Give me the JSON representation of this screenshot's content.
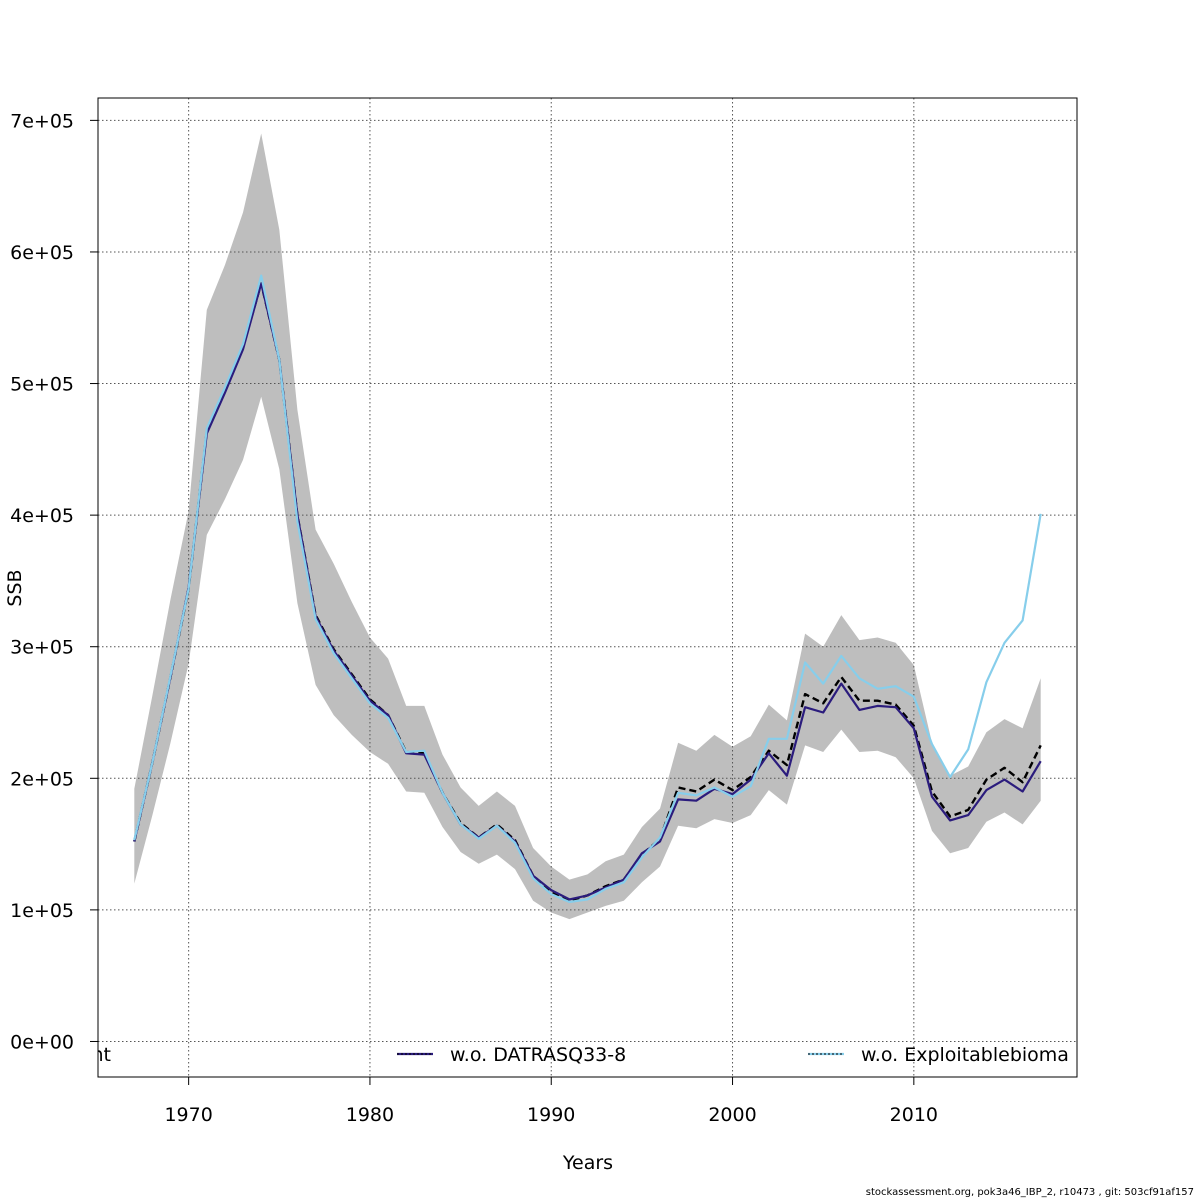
{
  "footer_text": "stockassessment.org, pok3a46_IBP_2, r10473 , git: 503cf91af157",
  "chart_data": {
    "type": "line",
    "title": "",
    "xlabel": "Years",
    "ylabel": "SSB",
    "xlim": [
      1965,
      2019
    ],
    "ylim": [
      -27000,
      717000
    ],
    "x_ticks": [
      1970,
      1980,
      1990,
      2000,
      2010
    ],
    "y_ticks": [
      0,
      100000,
      200000,
      300000,
      400000,
      500000,
      600000,
      700000
    ],
    "y_tick_labels": [
      "0e+00",
      "1e+05",
      "2e+05",
      "3e+05",
      "4e+05",
      "5e+05",
      "6e+05",
      "7e+05"
    ],
    "grid": true,
    "legend": {
      "placement": "bottom",
      "entries": [
        {
          "label": "nt",
          "color": "#000000",
          "style": "dashed"
        },
        {
          "label": "w.o. DATRASQ33-8",
          "color": "#2b1c7d",
          "style": "solid"
        },
        {
          "label": "w.o. Exploitablebioma",
          "color": "#87ceeb",
          "style": "dotted"
        }
      ]
    },
    "colors": {
      "band": "#bebebe",
      "base": "#000000",
      "datras": "#2b1c7d",
      "exploitable": "#87ceeb"
    },
    "x": [
      1967,
      1968,
      1969,
      1970,
      1971,
      1972,
      1973,
      1974,
      1975,
      1976,
      1977,
      1978,
      1979,
      1980,
      1981,
      1982,
      1983,
      1984,
      1985,
      1986,
      1987,
      1988,
      1989,
      1990,
      1991,
      1992,
      1993,
      1994,
      1995,
      1996,
      1997,
      1998,
      1999,
      2000,
      2001,
      2002,
      2003,
      2004,
      2005,
      2006,
      2007,
      2008,
      2009,
      2010,
      2011,
      2012,
      2013,
      2014,
      2015,
      2016,
      2017
    ],
    "band_lower": [
      120000,
      172000,
      227000,
      287000,
      385000,
      412000,
      442000,
      490000,
      435000,
      333000,
      271000,
      248000,
      233000,
      220000,
      211000,
      190000,
      189000,
      163000,
      144000,
      135000,
      142000,
      131000,
      107000,
      98000,
      93000,
      98000,
      103000,
      107000,
      121000,
      133000,
      164000,
      162000,
      169000,
      166000,
      172000,
      191000,
      180000,
      225000,
      220000,
      237000,
      220000,
      221000,
      216000,
      200000,
      160000,
      143000,
      147000,
      167000,
      174000,
      165000,
      183000
    ],
    "band_upper": [
      192000,
      263000,
      336000,
      403000,
      556000,
      590000,
      630000,
      690000,
      617000,
      480000,
      389000,
      363000,
      334000,
      307000,
      291000,
      255000,
      255000,
      218000,
      193000,
      179000,
      190000,
      179000,
      147000,
      133000,
      123000,
      127000,
      137000,
      142000,
      163000,
      177000,
      227000,
      221000,
      233000,
      224000,
      232000,
      256000,
      244000,
      310000,
      300000,
      324000,
      305000,
      307000,
      303000,
      286000,
      227000,
      202000,
      209000,
      235000,
      245000,
      238000,
      276000
    ],
    "series": [
      {
        "name": "nt",
        "color": "#000000",
        "style": "dashed",
        "values": [
          152000,
          212000,
          277000,
          344000,
          464000,
          494000,
          528000,
          576000,
          518000,
          400000,
          324000,
          298000,
          279000,
          260000,
          248000,
          220000,
          219000,
          189000,
          166000,
          155000,
          165000,
          153000,
          126000,
          114000,
          107000,
          111000,
          118000,
          123000,
          142000,
          154000,
          193000,
          190000,
          199000,
          191000,
          201000,
          221000,
          210000,
          264000,
          257000,
          277000,
          259000,
          259000,
          256000,
          240000,
          190000,
          171000,
          176000,
          199000,
          208000,
          197000,
          225000
        ]
      },
      {
        "name": "w.o. DATRASQ33-8",
        "color": "#2b1c7d",
        "style": "solid",
        "values": [
          152000,
          212000,
          277000,
          345000,
          462000,
          493000,
          526000,
          576000,
          518000,
          400000,
          323000,
          297000,
          278000,
          259000,
          248000,
          219000,
          218000,
          189000,
          165000,
          155000,
          164000,
          152000,
          126000,
          115000,
          108000,
          111000,
          117000,
          123000,
          143000,
          152000,
          184000,
          183000,
          192000,
          188000,
          199000,
          219000,
          202000,
          254000,
          250000,
          272000,
          252000,
          255000,
          254000,
          238000,
          186000,
          168000,
          172000,
          191000,
          199000,
          190000,
          213000
        ]
      },
      {
        "name": "w.o. Exploitablebioma",
        "color": "#87ceeb",
        "style": "dotted",
        "values": [
          153000,
          212000,
          278000,
          344000,
          466000,
          497000,
          530000,
          582000,
          518000,
          395000,
          321000,
          295000,
          276000,
          257000,
          246000,
          220000,
          221000,
          189000,
          165000,
          154000,
          164000,
          151000,
          124000,
          112000,
          106000,
          108000,
          116000,
          121000,
          140000,
          155000,
          189000,
          187000,
          193000,
          186000,
          194000,
          230000,
          230000,
          288000,
          272000,
          293000,
          276000,
          268000,
          270000,
          262000,
          226000,
          201000,
          222000,
          273000,
          303000,
          320000,
          401000
        ]
      }
    ]
  }
}
